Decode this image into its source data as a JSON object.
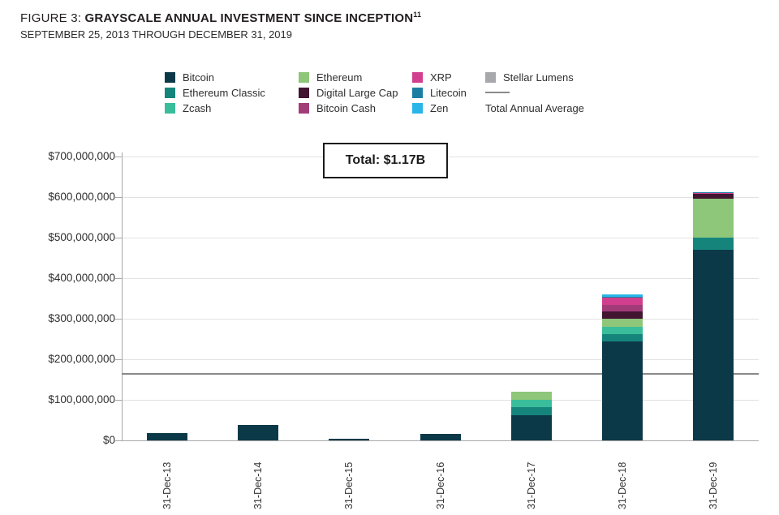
{
  "header": {
    "figure_prefix": "FIGURE 3: ",
    "title": "GRAYSCALE ANNUAL INVESTMENT SINCE INCEPTION",
    "title_superscript": "11",
    "subtitle": "SEPTEMBER 25, 2013 THROUGH DECEMBER 31, 2019"
  },
  "annotation": {
    "total_label": "Total: $1.17B"
  },
  "legend": {
    "columns": [
      {
        "items": [
          {
            "type": "swatch",
            "label": "Bitcoin",
            "color": "#0c3948"
          },
          {
            "type": "swatch",
            "label": "Ethereum Classic",
            "color": "#15857c"
          },
          {
            "type": "swatch",
            "label": "Zcash",
            "color": "#3abd9b"
          }
        ]
      },
      {
        "items": [
          {
            "type": "swatch",
            "label": "Ethereum",
            "color": "#8ec67a"
          },
          {
            "type": "swatch",
            "label": "Digital Large Cap",
            "color": "#421531"
          },
          {
            "type": "swatch",
            "label": "Bitcoin Cash",
            "color": "#a13c79"
          }
        ]
      },
      {
        "items": [
          {
            "type": "swatch",
            "label": "XRP",
            "color": "#d23f8e"
          },
          {
            "type": "swatch",
            "label": "Litecoin",
            "color": "#1c7fa2"
          },
          {
            "type": "swatch",
            "label": "Zen",
            "color": "#29b5e8"
          }
        ]
      },
      {
        "items": [
          {
            "type": "swatch",
            "label": "Stellar Lumens",
            "color": "#a6a8ab"
          },
          {
            "type": "line",
            "label": "Total Annual Average",
            "color": "#8a8a8a"
          }
        ]
      }
    ]
  },
  "chart_data": {
    "type": "bar",
    "stacked": true,
    "title": "GRAYSCALE ANNUAL INVESTMENT SINCE INCEPTION",
    "unit": "USD millions",
    "categories": [
      "31-Dec-13",
      "31-Dec-14",
      "31-Dec-15",
      "31-Dec-16",
      "31-Dec-17",
      "31-Dec-18",
      "31-Dec-19"
    ],
    "series": [
      {
        "name": "Bitcoin",
        "color": "#0c3948",
        "values": [
          18,
          38,
          4,
          17,
          63,
          244,
          471
        ]
      },
      {
        "name": "Ethereum Classic",
        "color": "#15857c",
        "values": [
          0,
          0,
          0,
          0,
          20,
          19,
          30
        ]
      },
      {
        "name": "Zcash",
        "color": "#3abd9b",
        "values": [
          0,
          0,
          0,
          0,
          17,
          17,
          0
        ]
      },
      {
        "name": "Ethereum",
        "color": "#8ec67a",
        "values": [
          0,
          0,
          0,
          0,
          20,
          21,
          95
        ]
      },
      {
        "name": "Digital Large Cap",
        "color": "#421531",
        "values": [
          0,
          0,
          0,
          0,
          0,
          17,
          12
        ]
      },
      {
        "name": "Bitcoin Cash",
        "color": "#a13c79",
        "values": [
          0,
          0,
          0,
          0,
          0,
          17,
          0
        ]
      },
      {
        "name": "XRP",
        "color": "#d23f8e",
        "values": [
          0,
          0,
          0,
          0,
          0,
          17,
          2
        ]
      },
      {
        "name": "Litecoin",
        "color": "#1c7fa2",
        "values": [
          0,
          0,
          0,
          0,
          0,
          3,
          3
        ]
      },
      {
        "name": "Zen",
        "color": "#29b5e8",
        "values": [
          0,
          0,
          0,
          0,
          0,
          5,
          0
        ]
      },
      {
        "name": "Stellar Lumens",
        "color": "#a6a8ab",
        "values": [
          0,
          0,
          0,
          0,
          0,
          0,
          0
        ]
      }
    ],
    "totals_musd": [
      18,
      38,
      4,
      17,
      120,
      360,
      613
    ],
    "grand_total_label": "Total: $1.17B",
    "average_line": {
      "label": "Total Annual Average",
      "value_musd": 167,
      "color": "#8a8a8a"
    },
    "y_axis": {
      "tick_labels": [
        "$0",
        "$100,000,000",
        "$200,000,000",
        "$300,000,000",
        "$400,000,000",
        "$500,000,000",
        "$600,000,000",
        "$700,000,000"
      ],
      "step_musd": 100,
      "max_musd": 700
    },
    "grid": true,
    "legend_position": "top"
  }
}
